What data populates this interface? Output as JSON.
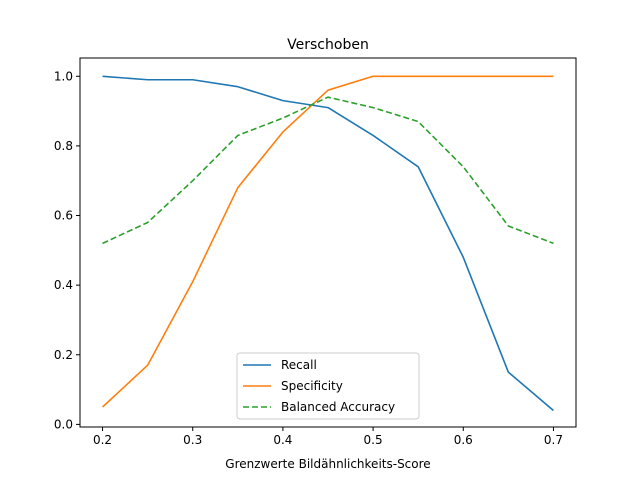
{
  "chart_data": {
    "type": "line",
    "title": "Verschoben",
    "xlabel": "Grenzwerte Bildähnlichkeits-Score",
    "ylabel": "",
    "xlim": [
      0.175,
      0.725
    ],
    "ylim": [
      -0.0075,
      1.0525
    ],
    "xticks": [
      0.2,
      0.3,
      0.4,
      0.5,
      0.6,
      0.7
    ],
    "yticks": [
      0.0,
      0.2,
      0.4,
      0.6,
      0.8,
      1.0
    ],
    "xtick_labels": [
      "0.2",
      "0.3",
      "0.4",
      "0.5",
      "0.6",
      "0.7"
    ],
    "ytick_labels": [
      "0.0",
      "0.2",
      "0.4",
      "0.6",
      "0.8",
      "1.0"
    ],
    "x": [
      0.2,
      0.25,
      0.3,
      0.35,
      0.4,
      0.45,
      0.5,
      0.55,
      0.6,
      0.65,
      0.7
    ],
    "series": [
      {
        "name": "Recall",
        "color": "#1f77b4",
        "dash": "solid",
        "values": [
          1.0,
          0.99,
          0.99,
          0.97,
          0.93,
          0.91,
          0.83,
          0.74,
          0.48,
          0.15,
          0.04
        ]
      },
      {
        "name": "Specificity",
        "color": "#ff7f0e",
        "dash": "solid",
        "values": [
          0.05,
          0.17,
          0.41,
          0.68,
          0.84,
          0.96,
          1.0,
          1.0,
          1.0,
          1.0,
          1.0
        ]
      },
      {
        "name": "Balanced Accuracy",
        "color": "#2ca02c",
        "dash": "dashed",
        "values": [
          0.52,
          0.58,
          0.7,
          0.83,
          0.88,
          0.94,
          0.91,
          0.87,
          0.74,
          0.57,
          0.52
        ]
      }
    ],
    "legend_position": "bottom-center",
    "grid": false
  }
}
